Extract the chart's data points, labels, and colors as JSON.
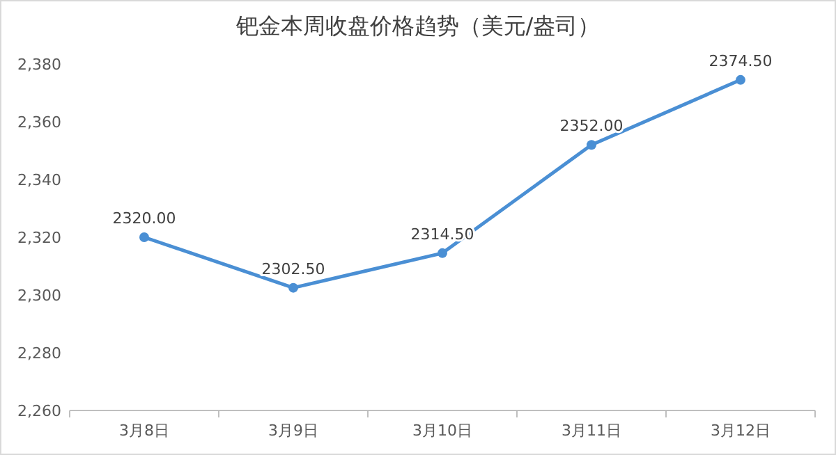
{
  "chart_data": {
    "type": "line",
    "title": "钯金本周收盘价格趋势（美元/盎司）",
    "categories": [
      "3月8日",
      "3月9日",
      "3月10日",
      "3月11日",
      "3月12日"
    ],
    "series": [
      {
        "color": "#4a8fd4",
        "values": [
          2320,
          2302.5,
          2314.5,
          2352,
          2374.5
        ],
        "value_labels": [
          "2320.00",
          "2302.50",
          "2314.50",
          "2352.00",
          "2374.50"
        ]
      }
    ],
    "ylim": [
      2260,
      2380
    ],
    "yticks": [
      {
        "value": 2260,
        "label": "2,260"
      },
      {
        "value": 2280,
        "label": "2,280"
      },
      {
        "value": 2300,
        "label": "2,300"
      },
      {
        "value": 2320,
        "label": "2,320"
      },
      {
        "value": 2340,
        "label": "2,340"
      },
      {
        "value": 2360,
        "label": "2,360"
      },
      {
        "value": 2380,
        "label": "2,380"
      }
    ],
    "marker": "circle",
    "line_style": "solid",
    "grid": false
  }
}
